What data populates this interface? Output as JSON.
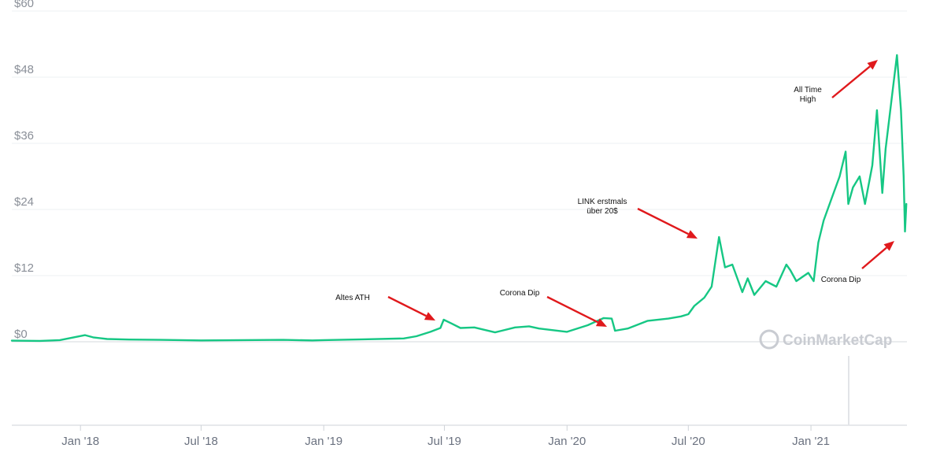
{
  "chart_data": {
    "type": "line",
    "title": "",
    "xlabel": "",
    "ylabel": "",
    "ylim": [
      0,
      60
    ],
    "xlim": [
      "2017-09-20",
      "2021-05-25"
    ],
    "grid": true,
    "line_color": "#16c784",
    "annotation_color": "#e0191c",
    "y_ticks": [
      {
        "value": 0,
        "label": "$0"
      },
      {
        "value": 12,
        "label": "$12"
      },
      {
        "value": 24,
        "label": "$24"
      },
      {
        "value": 36,
        "label": "$36"
      },
      {
        "value": 48,
        "label": "$48"
      },
      {
        "value": 60,
        "label": "$60"
      }
    ],
    "x_ticks": [
      {
        "date": "2018-01-01",
        "label": "Jan '18"
      },
      {
        "date": "2018-07-01",
        "label": "Jul '18"
      },
      {
        "date": "2019-01-01",
        "label": "Jan '19"
      },
      {
        "date": "2019-07-01",
        "label": "Jul '19"
      },
      {
        "date": "2020-01-01",
        "label": "Jan '20"
      },
      {
        "date": "2020-07-01",
        "label": "Jul '20"
      },
      {
        "date": "2021-01-01",
        "label": "Jan '21"
      }
    ],
    "series": [
      {
        "points": [
          [
            "2017-09-20",
            0.2
          ],
          [
            "2017-11-01",
            0.15
          ],
          [
            "2017-12-01",
            0.3
          ],
          [
            "2018-01-08",
            1.2
          ],
          [
            "2018-01-20",
            0.8
          ],
          [
            "2018-02-10",
            0.5
          ],
          [
            "2018-03-15",
            0.4
          ],
          [
            "2018-05-01",
            0.35
          ],
          [
            "2018-07-01",
            0.25
          ],
          [
            "2018-09-01",
            0.3
          ],
          [
            "2018-11-01",
            0.35
          ],
          [
            "2018-12-15",
            0.25
          ],
          [
            "2019-01-01",
            0.3
          ],
          [
            "2019-03-01",
            0.45
          ],
          [
            "2019-05-01",
            0.6
          ],
          [
            "2019-05-20",
            1.0
          ],
          [
            "2019-06-10",
            1.8
          ],
          [
            "2019-06-25",
            2.5
          ],
          [
            "2019-06-30",
            4.0
          ],
          [
            "2019-07-12",
            3.3
          ],
          [
            "2019-07-25",
            2.5
          ],
          [
            "2019-08-15",
            2.6
          ],
          [
            "2019-09-15",
            1.7
          ],
          [
            "2019-10-15",
            2.6
          ],
          [
            "2019-11-05",
            2.8
          ],
          [
            "2019-11-20",
            2.4
          ],
          [
            "2020-01-01",
            1.8
          ],
          [
            "2020-02-01",
            3.0
          ],
          [
            "2020-02-25",
            4.3
          ],
          [
            "2020-03-08",
            4.2
          ],
          [
            "2020-03-13",
            2.0
          ],
          [
            "2020-04-01",
            2.4
          ],
          [
            "2020-05-01",
            3.8
          ],
          [
            "2020-06-01",
            4.2
          ],
          [
            "2020-06-20",
            4.6
          ],
          [
            "2020-07-01",
            5.0
          ],
          [
            "2020-07-10",
            6.5
          ],
          [
            "2020-07-25",
            8.0
          ],
          [
            "2020-08-05",
            10.0
          ],
          [
            "2020-08-16",
            19.0
          ],
          [
            "2020-08-25",
            13.5
          ],
          [
            "2020-09-05",
            14.0
          ],
          [
            "2020-09-20",
            9.0
          ],
          [
            "2020-09-28",
            11.5
          ],
          [
            "2020-10-08",
            8.5
          ],
          [
            "2020-10-25",
            11.0
          ],
          [
            "2020-11-10",
            10.0
          ],
          [
            "2020-11-25",
            14.0
          ],
          [
            "2020-12-01",
            13.0
          ],
          [
            "2020-12-10",
            11.0
          ],
          [
            "2020-12-28",
            12.5
          ],
          [
            "2021-01-05",
            11.0
          ],
          [
            "2021-01-12",
            18.0
          ],
          [
            "2021-01-20",
            22.0
          ],
          [
            "2021-02-01",
            26.0
          ],
          [
            "2021-02-13",
            30.0
          ],
          [
            "2021-02-22",
            34.5
          ],
          [
            "2021-02-26",
            25.0
          ],
          [
            "2021-03-05",
            28.0
          ],
          [
            "2021-03-15",
            30.0
          ],
          [
            "2021-03-23",
            25.0
          ],
          [
            "2021-04-03",
            32.0
          ],
          [
            "2021-04-10",
            42.0
          ],
          [
            "2021-04-18",
            27.0
          ],
          [
            "2021-04-23",
            35.0
          ],
          [
            "2021-05-02",
            44.0
          ],
          [
            "2021-05-10",
            52.0
          ],
          [
            "2021-05-16",
            42.0
          ],
          [
            "2021-05-20",
            30.0
          ],
          [
            "2021-05-22",
            20.0
          ],
          [
            "2021-05-24",
            25.0
          ]
        ]
      }
    ],
    "annotations": [
      {
        "lines": [
          "Altes ATH"
        ],
        "date": "2019-06-28",
        "value": 2.8
      },
      {
        "lines": [
          "Corona Dip"
        ],
        "date": "2020-03-12",
        "value": 1.6
      },
      {
        "lines": [
          "LINK erstmals",
          "über 20$"
        ],
        "date": "2020-08-12",
        "value": 17.6
      },
      {
        "lines": [
          "All Time",
          "High"
        ],
        "date": "2021-05-06",
        "value": 52.5
      },
      {
        "lines": [
          "Corona Dip"
        ],
        "date": "2021-05-22",
        "value": 19.2
      }
    ],
    "watermark": "CoinMarketCap"
  }
}
